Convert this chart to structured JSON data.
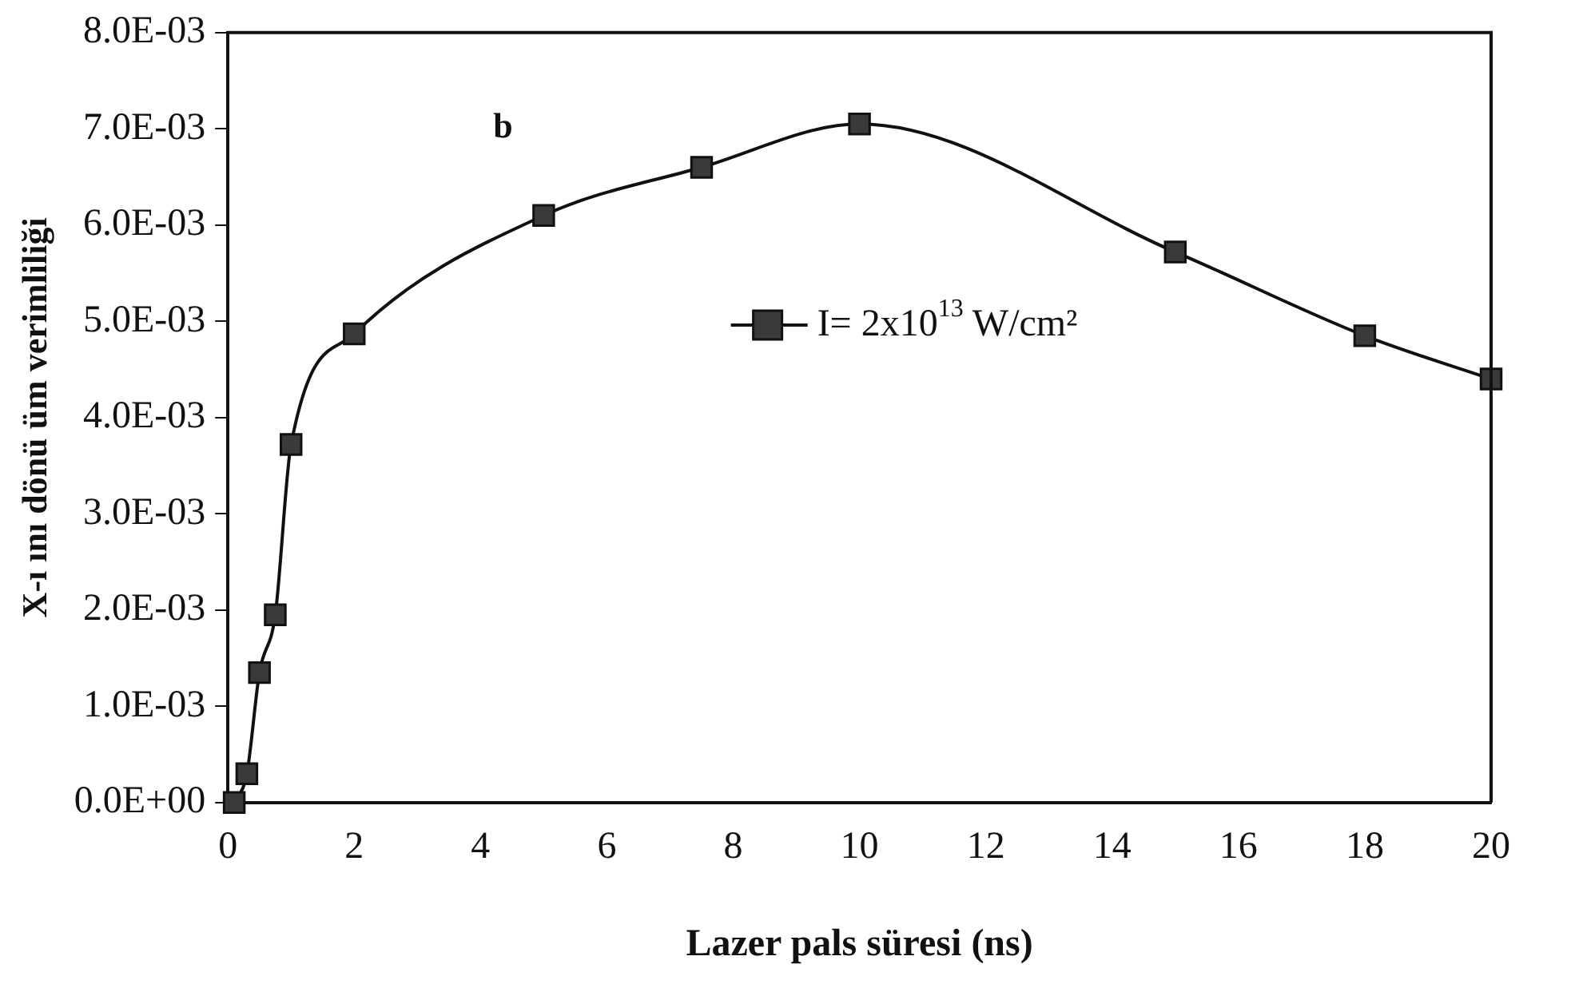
{
  "chart_data": {
    "type": "line",
    "xlabel": "Lazer pals süresi (ns)",
    "ylabel": "X-ı ını dönü üm verimliliği",
    "legend": "center",
    "annotations": [
      "b"
    ],
    "series": [
      {
        "name": "I= 2x10$^{13}$ W/cm²",
        "color": "#3a3a3a",
        "x": [
          0.1,
          0.3,
          0.5,
          0.75,
          1,
          2,
          5,
          7.5,
          10,
          15,
          18,
          20
        ],
        "values": [
          0,
          0.0003,
          0.00135,
          0.00195,
          0.00372,
          0.00487,
          0.0061,
          0.0066,
          0.00705,
          0.00572,
          0.00485,
          0.0044
        ]
      }
    ],
    "marker": "square",
    "line_style": "solid",
    "grid": false,
    "xlim": [
      0,
      20
    ],
    "xticks": [
      0,
      2,
      4,
      6,
      8,
      10,
      12,
      14,
      16,
      18,
      20
    ],
    "ylim": [
      0,
      0.008
    ],
    "yticks": [
      {
        "value": 0,
        "label": "0.0E+00"
      },
      {
        "value": 0.001,
        "label": "1.0E-03"
      },
      {
        "value": 0.002,
        "label": "2.0E-03"
      },
      {
        "value": 0.003,
        "label": "3.0E-03"
      },
      {
        "value": 0.004,
        "label": "4.0E-03"
      },
      {
        "value": 0.005,
        "label": "5.0E-03"
      },
      {
        "value": 0.006,
        "label": "6.0E-03"
      },
      {
        "value": 0.007,
        "label": "7.0E-03"
      },
      {
        "value": 0.008,
        "label": "8.0E-03"
      }
    ]
  }
}
